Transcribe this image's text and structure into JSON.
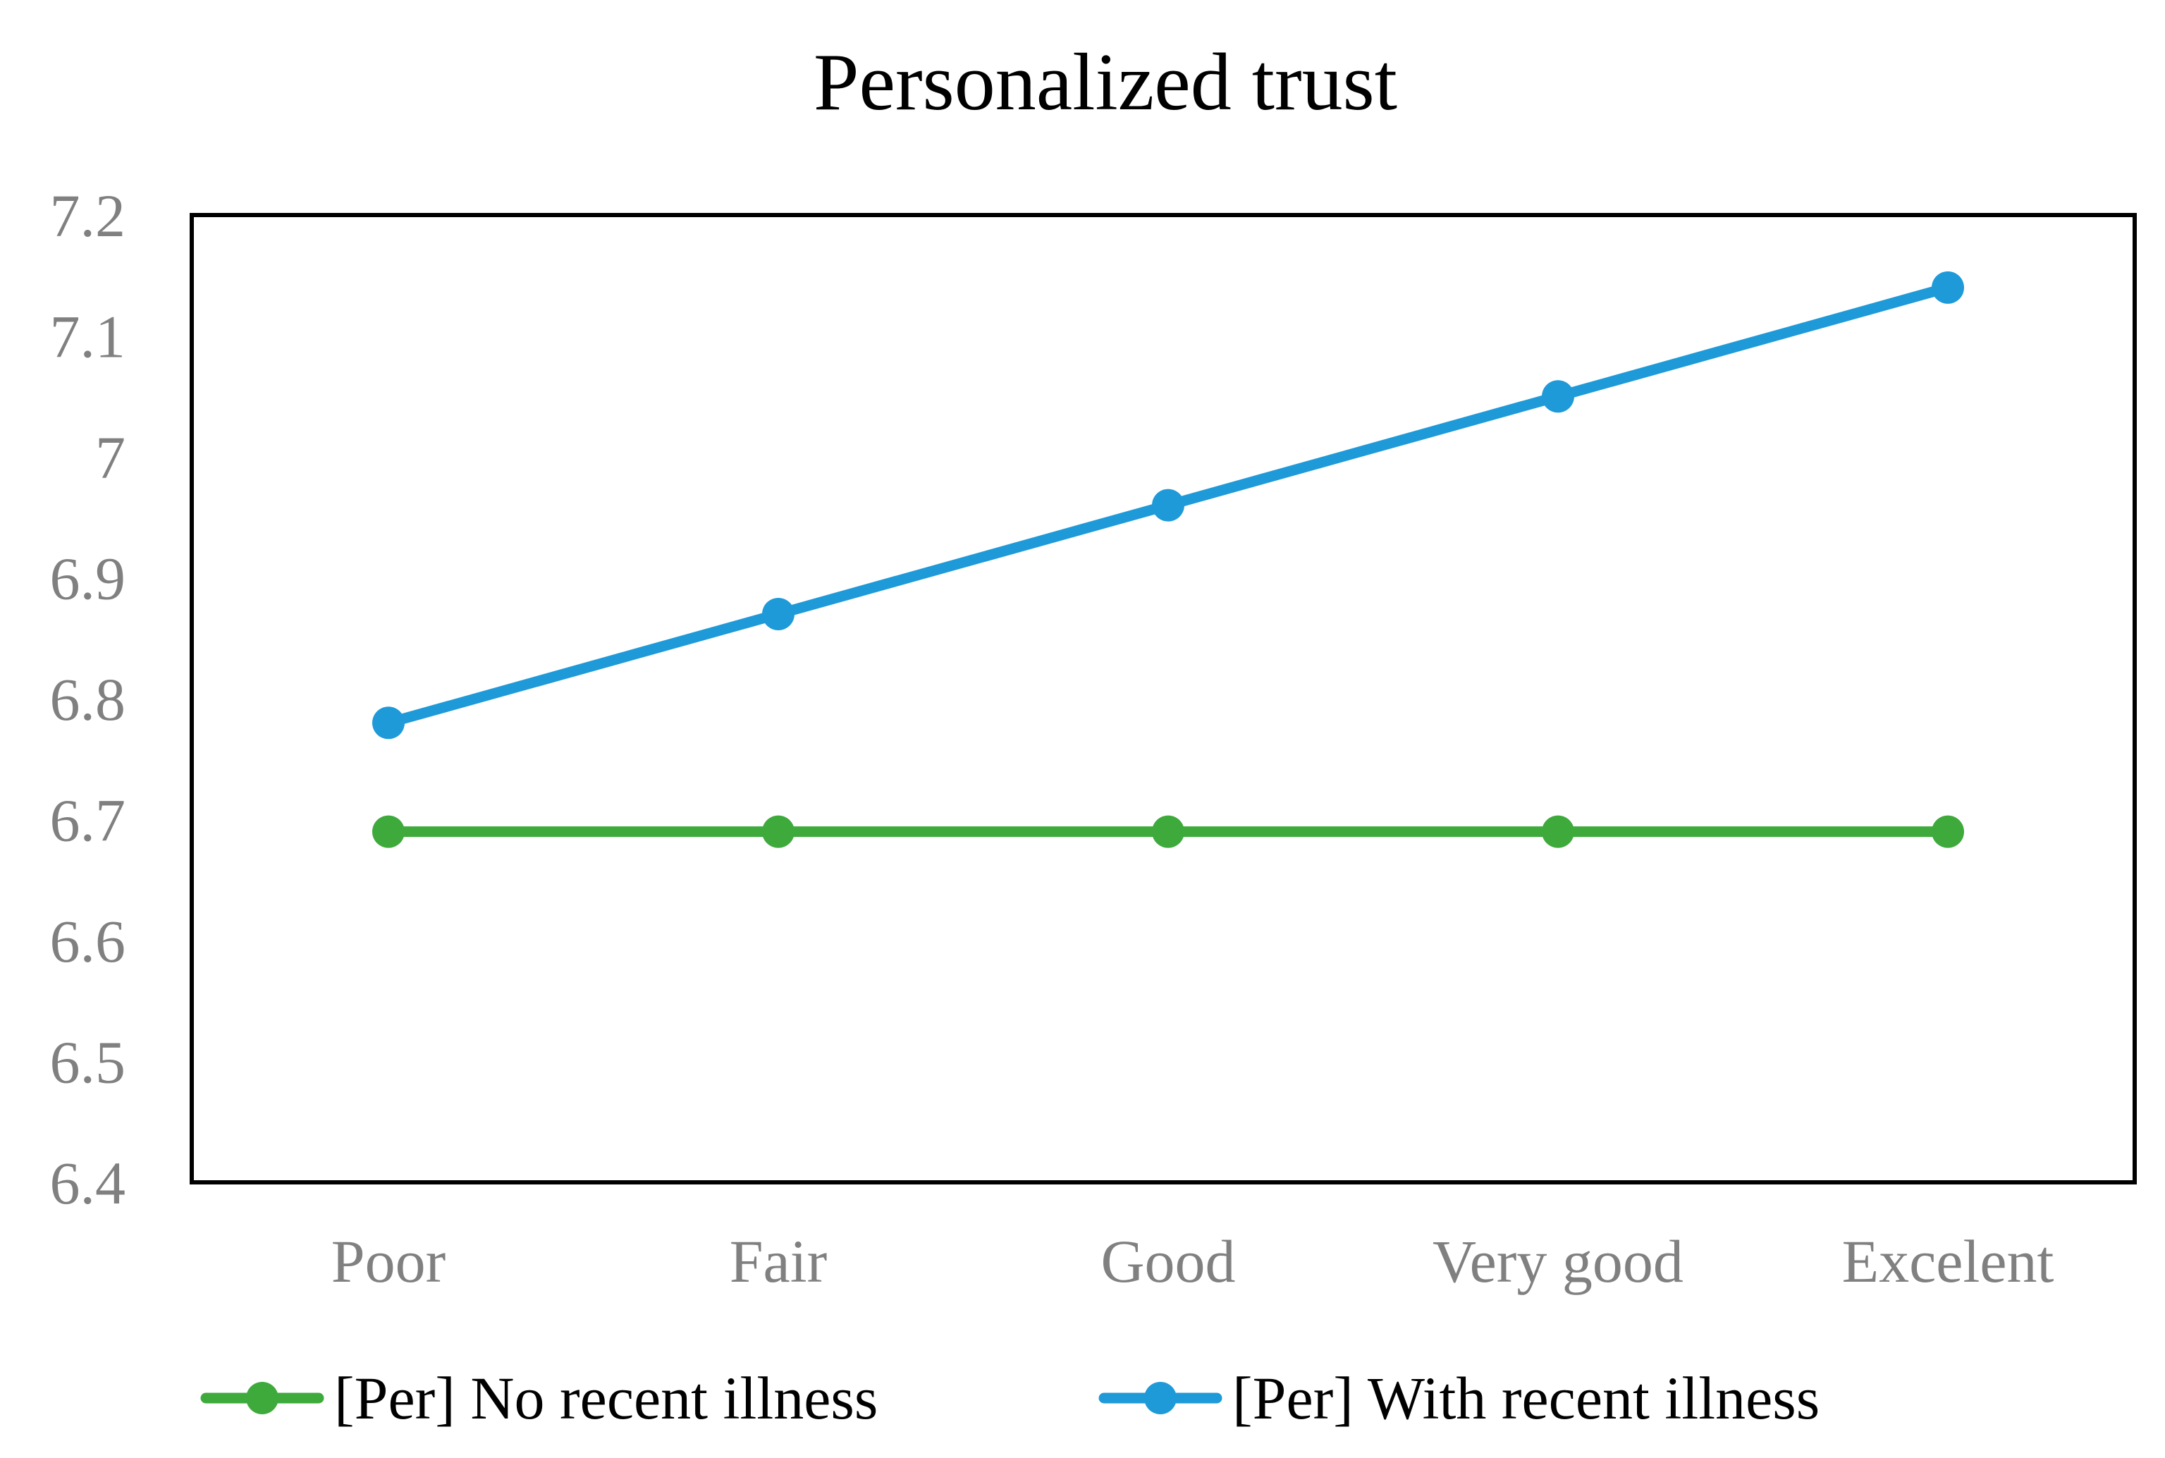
{
  "chart_data": {
    "type": "line",
    "title": "Personalized trust",
    "xlabel": "",
    "ylabel": "",
    "categories": [
      "Poor",
      "Fair",
      "Good",
      "Very good",
      "Excelent"
    ],
    "ylim": [
      6.4,
      7.2
    ],
    "yticks": [
      "6.4",
      "6.5",
      "6.6",
      "6.7",
      "6.8",
      "6.9",
      "7",
      "7.1",
      "7.2"
    ],
    "grid": false,
    "legend_position": "bottom",
    "series": [
      {
        "name": "[Per] No recent illness",
        "color": "#3EAA3C",
        "values": [
          6.69,
          6.69,
          6.69,
          6.69,
          6.69
        ]
      },
      {
        "name": "[Per] With recent illness",
        "color": "#1F9AD8",
        "values": [
          6.78,
          6.87,
          6.96,
          7.05,
          7.14
        ]
      }
    ]
  }
}
